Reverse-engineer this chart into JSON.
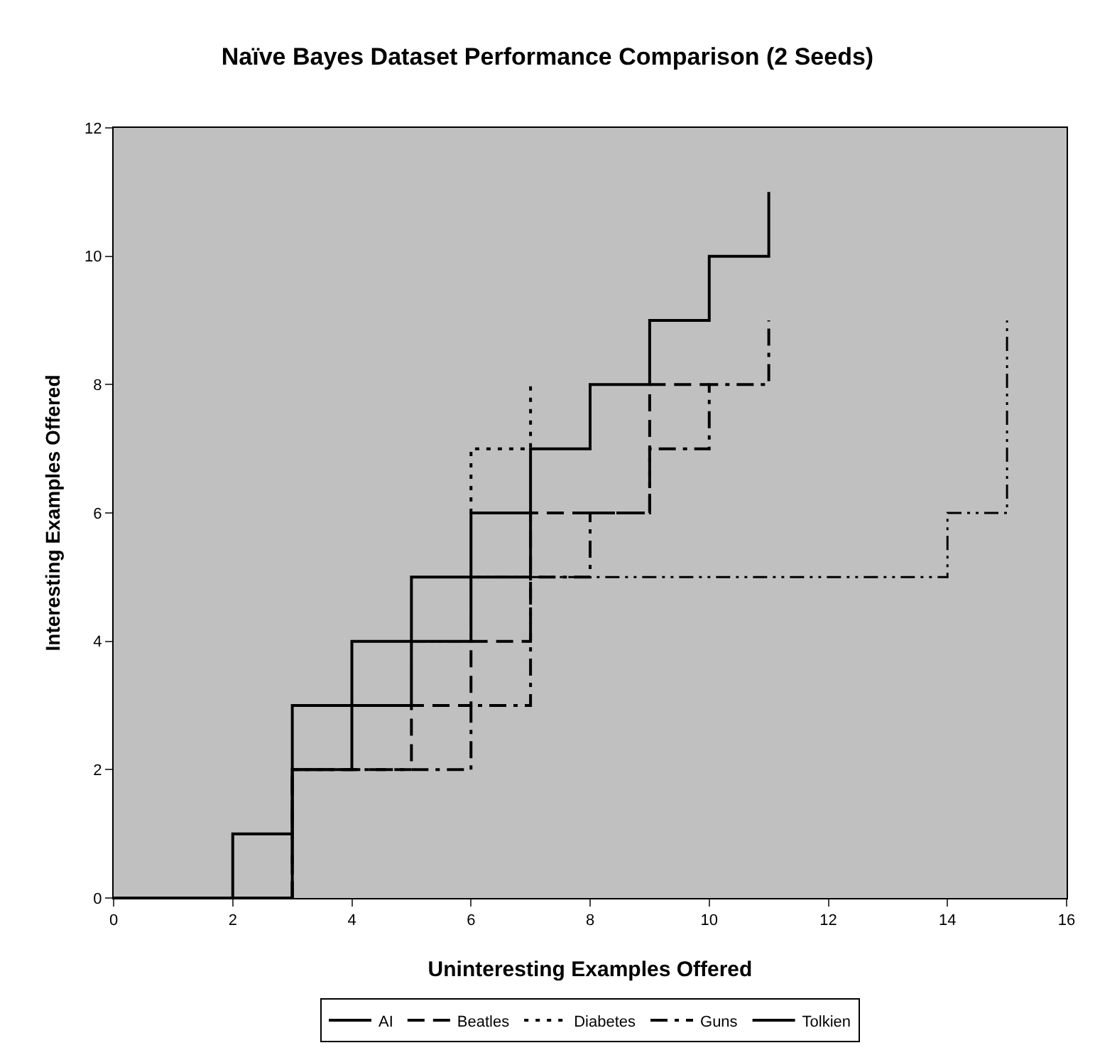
{
  "chart_data": {
    "type": "line",
    "title": "Naïve Bayes Dataset Performance Comparison (2 Seeds)",
    "xlabel": "Uninteresting Examples Offered",
    "ylabel": "Interesting Examples Offered",
    "xlim": [
      0,
      16
    ],
    "xticks": [
      0,
      2,
      4,
      6,
      8,
      10,
      12,
      14,
      16
    ],
    "ylim": [
      0,
      12
    ],
    "yticks": [
      0,
      2,
      4,
      6,
      8,
      10,
      12
    ],
    "grid": false,
    "legend": "bottom",
    "marker": "none",
    "series": [
      {
        "name": "AI",
        "color": "#000000",
        "line_style": "solid",
        "x": [
          0,
          2,
          2,
          3,
          3,
          4,
          4,
          5,
          5,
          6,
          6,
          7
        ],
        "values": [
          0,
          0,
          1,
          1,
          3,
          3,
          4,
          4,
          5,
          5,
          6,
          6
        ]
      },
      {
        "name": "Beatles",
        "color": "#000000",
        "line_style": "dashed",
        "x": [
          0,
          3,
          3,
          5,
          5,
          6,
          6,
          7,
          7,
          9,
          9,
          10
        ],
        "values": [
          0,
          0,
          2,
          2,
          3,
          3,
          4,
          4,
          6,
          6,
          8,
          8
        ]
      },
      {
        "name": "Diabetes",
        "color": "#000000",
        "line_style": "dotted",
        "x": [
          6,
          6,
          7,
          7
        ],
        "values": [
          6,
          7,
          7,
          8
        ]
      },
      {
        "name": "Guns",
        "color": "#000000",
        "line_style": "dashdot",
        "x": [
          0,
          3,
          3,
          6,
          6,
          7,
          7,
          8,
          8,
          9,
          9,
          10,
          10,
          11,
          11
        ],
        "values": [
          0,
          0,
          2,
          2,
          3,
          3,
          5,
          5,
          6,
          6,
          7,
          7,
          8,
          8,
          9
        ]
      },
      {
        "color": "#000000",
        "line_style": "dashdotdot",
        "x": [
          0,
          3,
          3,
          4,
          4,
          5,
          5,
          6,
          6,
          14,
          14,
          15,
          15
        ],
        "values": [
          0,
          0,
          2,
          2,
          3,
          3,
          4,
          4,
          5,
          5,
          6,
          6,
          9
        ]
      },
      {
        "name": "Tolkien",
        "color": "#000000",
        "line_style": "solid",
        "x": [
          0,
          3,
          3,
          4,
          4,
          5,
          5,
          6,
          6,
          7,
          7,
          8,
          8,
          9,
          9,
          10,
          10,
          11,
          11
        ],
        "values": [
          0,
          0,
          2,
          2,
          3,
          3,
          4,
          4,
          5,
          5,
          7,
          7,
          8,
          8,
          9,
          9,
          10,
          10,
          11
        ]
      }
    ]
  }
}
